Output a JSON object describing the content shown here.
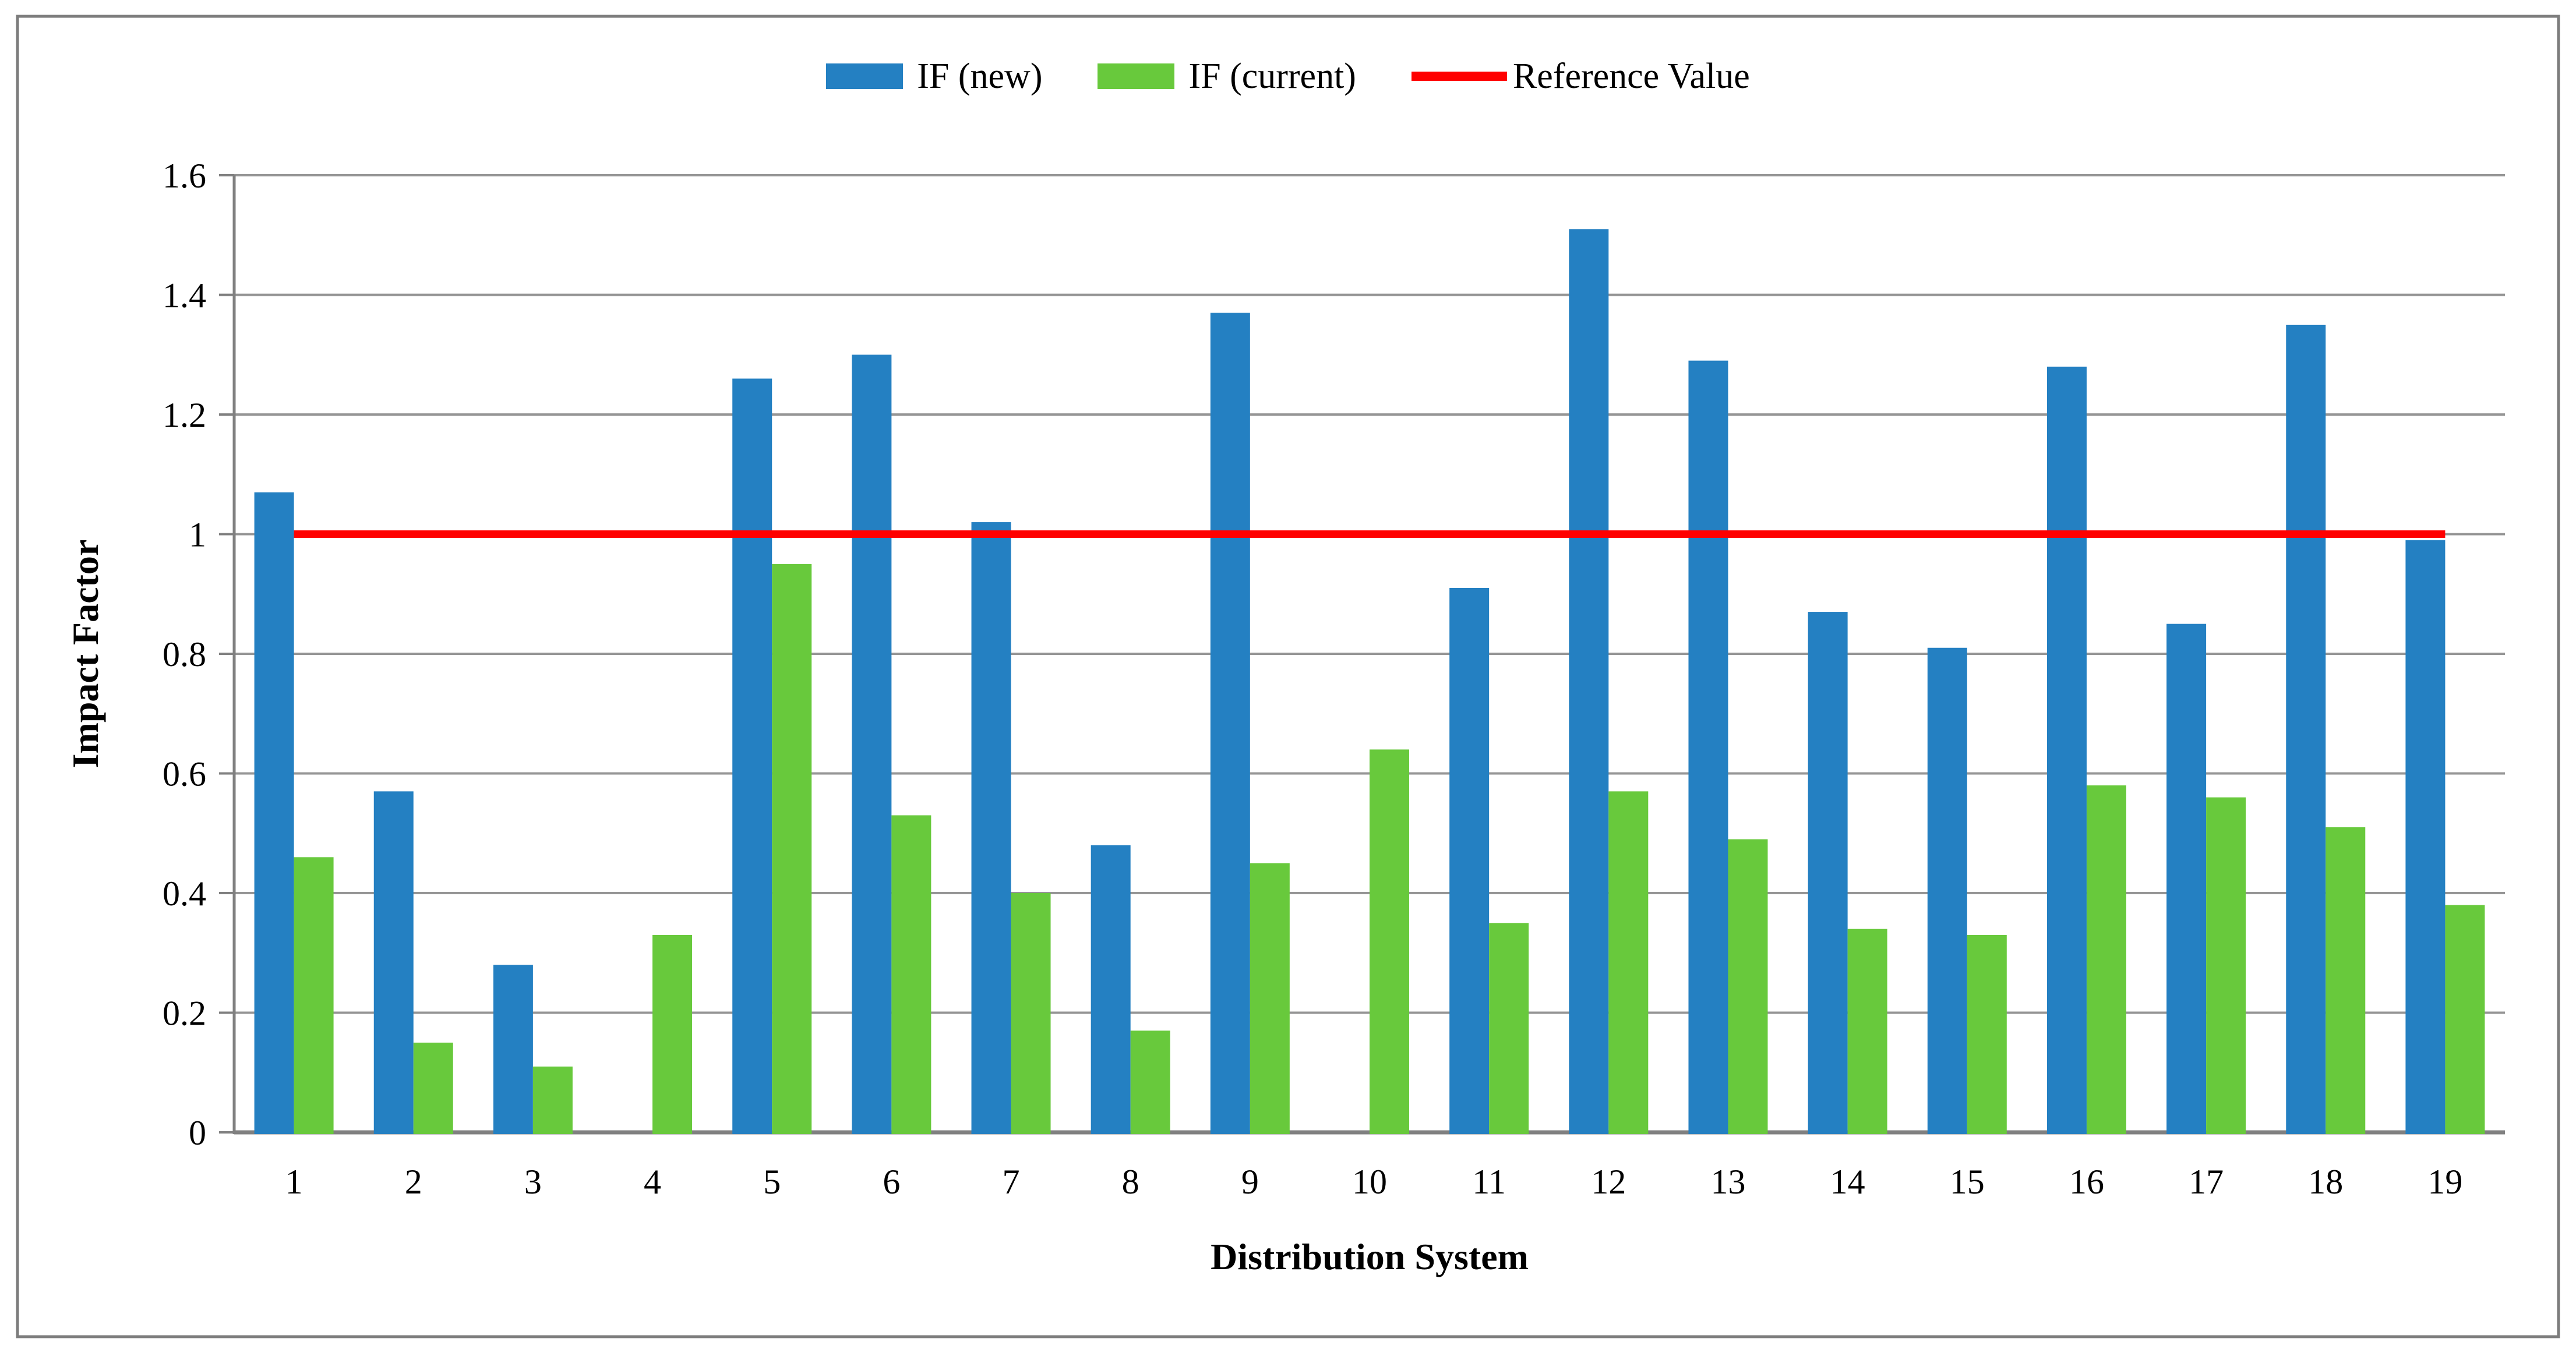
{
  "figure": {
    "kind": "excel-style clustered column chart with reference line",
    "background": "#ffffff"
  },
  "chart_data": {
    "type": "bar",
    "title": "",
    "xlabel": "Distribution System",
    "ylabel": "Impact Factor",
    "categories": [
      "1",
      "2",
      "3",
      "4",
      "5",
      "6",
      "7",
      "8",
      "9",
      "10",
      "11",
      "12",
      "13",
      "14",
      "15",
      "16",
      "17",
      "18",
      "19"
    ],
    "series": [
      {
        "name": "IF (new)",
        "color": "#2480C2",
        "values": [
          1.07,
          0.57,
          0.28,
          0,
          1.26,
          1.3,
          1.02,
          0.48,
          1.37,
          0,
          0.91,
          1.51,
          1.29,
          0.87,
          0.81,
          1.28,
          0.85,
          1.35,
          0.99
        ]
      },
      {
        "name": "IF (current)",
        "color": "#68C93C",
        "values": [
          0.46,
          0.15,
          0.11,
          0.33,
          0.95,
          0.53,
          0.4,
          0.17,
          0.45,
          0.64,
          0.35,
          0.57,
          0.49,
          0.34,
          0.33,
          0.58,
          0.56,
          0.51,
          0.38
        ]
      }
    ],
    "reference_line": {
      "label": "Reference Value",
      "value": 1.0,
      "color": "#FF0000"
    },
    "ylim": [
      0,
      1.6
    ],
    "yticks": [
      0,
      0.2,
      0.4,
      0.6,
      0.8,
      1.0,
      1.2,
      1.4,
      1.6
    ],
    "ytick_labels": [
      "0",
      "0.2",
      "0.4",
      "0.6",
      "0.8",
      "1",
      "1.2",
      "1.4",
      "1.6"
    ],
    "grid": true,
    "legend_position": "top-center"
  },
  "legend": {
    "items": [
      {
        "label": "IF (new)"
      },
      {
        "label": "IF (current)"
      },
      {
        "label": "Reference Value"
      }
    ]
  },
  "colors": {
    "gridline": "#959595",
    "axis": "#808080",
    "border": "#7D7D7D",
    "text": "#000000"
  }
}
